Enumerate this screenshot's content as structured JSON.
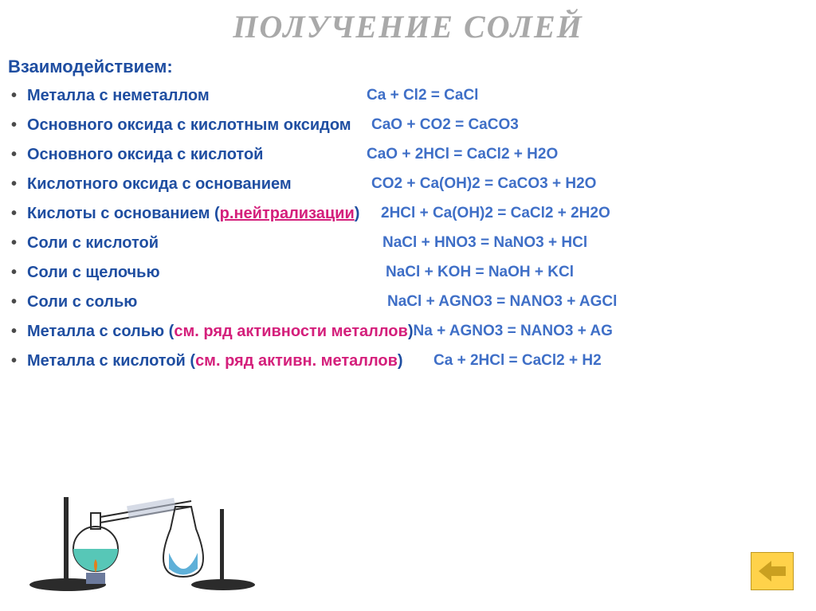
{
  "title": "ПОЛУЧЕНИЕ   СОЛЕЙ",
  "subtitle": "Взаимодействием:",
  "colors": {
    "title": "#a9a9a9",
    "text_primary": "#1f4ea1",
    "equation": "#3f6fc7",
    "note": "#d41f7b",
    "nav_bg": "#ffd24a",
    "background": "#ffffff"
  },
  "fontsizes": {
    "title": 40,
    "subtitle": 22,
    "row": 20,
    "eq": 19
  },
  "rows": [
    {
      "label": "Металла  с неметаллом",
      "labelWidth": 426,
      "eq": "Ca + Cl2 = CaCl"
    },
    {
      "label": "Основного оксида  с кислотным оксидом",
      "labelWidth": 432,
      "eq": "CaO + CO2 = CaCO3"
    },
    {
      "label": "Основного оксида  с кислотой",
      "labelWidth": 426,
      "eq": "CaO + 2HCl = CaCl2 + H2O"
    },
    {
      "label": "Кислотного оксида с основанием",
      "labelWidth": 432,
      "eq": "CO2 + Ca(OH)2 = CaCO3 + H2O"
    },
    {
      "label": "Кислоты с основанием (",
      "note": "р.нейтрализации",
      "noteUnderline": true,
      "after": ")",
      "labelWidth": 444,
      "eq": "2HCl + Ca(OH)2 = CaCl2 + 2H2O"
    },
    {
      "label": "Соли с кислотой",
      "labelWidth": 446,
      "eq": "NaCl + HNO3 = NaNO3 + HCl"
    },
    {
      "label": "Соли с щелочью",
      "labelWidth": 450,
      "eq": "NaCl + KOH = NaOH + KCl"
    },
    {
      "label": "Соли с солью",
      "labelWidth": 452,
      "eq": "NaCl + AGNO3 = NANO3 + AGCl"
    },
    {
      "label": "Металла с солью  (",
      "note": "см. ряд активности металлов",
      "after": ")",
      "labelWidth": 0,
      "eq": "Na + AGNO3 = NANO3 + AG"
    },
    {
      "label": "Металла с кислотой (",
      "note": "см. ряд активн. металлов",
      "after": ")",
      "labelWidth": 510,
      "eq": "Ca + 2HCl = CaCl2 + H2"
    }
  ],
  "nav": {
    "icon": "back-arrow"
  },
  "illustration": {
    "flask_color": "#57c7b7",
    "stand_color": "#2b2b2b",
    "tube_color": "#6c7a9c",
    "liquid_color": "#5fb0d8"
  }
}
